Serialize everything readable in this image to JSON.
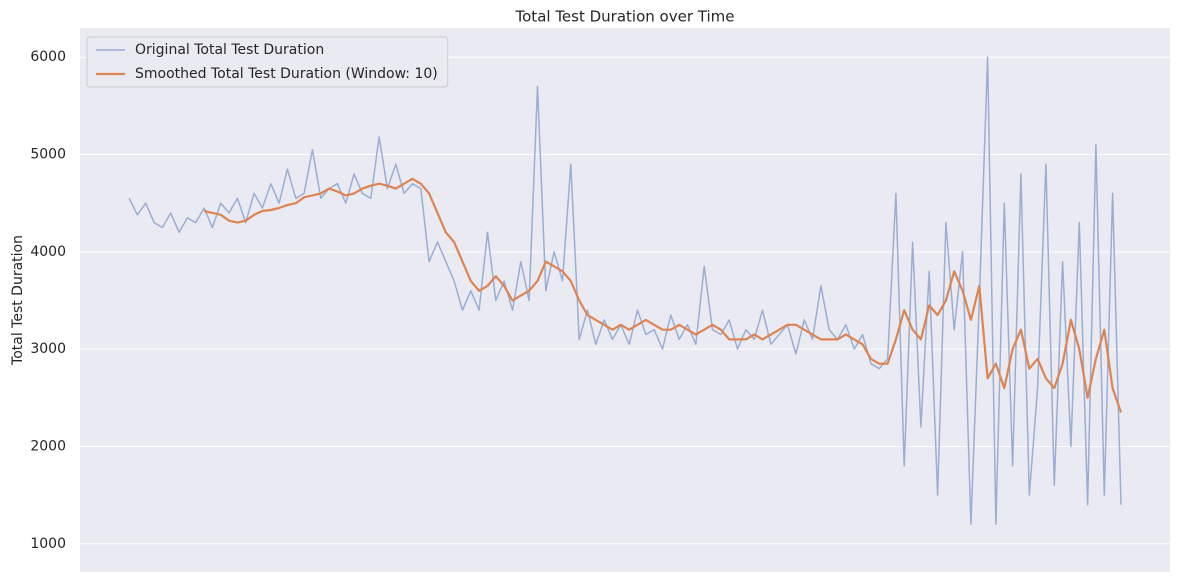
{
  "chart_data": {
    "type": "line",
    "title": "Total Test Duration over Time",
    "y_label": "Total Test Duration",
    "ylim": [
      710,
      6300
    ],
    "yticks": [
      1000,
      2000,
      3000,
      4000,
      5000,
      6000
    ],
    "grid": true,
    "legend": "upper-left",
    "series": [
      {
        "name": "Original Total Test Duration",
        "color": "#9aaed3",
        "width": 1.5,
        "values": [
          4550,
          4380,
          4500,
          4300,
          4250,
          4400,
          4200,
          4350,
          4300,
          4450,
          4250,
          4500,
          4400,
          4550,
          4300,
          4600,
          4450,
          4700,
          4500,
          4850,
          4550,
          4600,
          5050,
          4550,
          4650,
          4700,
          4500,
          4800,
          4600,
          4550,
          5180,
          4650,
          4900,
          4600,
          4700,
          4650,
          3900,
          4100,
          3900,
          3700,
          3400,
          3600,
          3400,
          4200,
          3500,
          3700,
          3400,
          3900,
          3500,
          5700,
          3600,
          4000,
          3700,
          4900,
          3100,
          3400,
          3050,
          3300,
          3100,
          3250,
          3050,
          3400,
          3150,
          3200,
          3000,
          3350,
          3100,
          3250,
          3050,
          3850,
          3200,
          3150,
          3300,
          3000,
          3200,
          3100,
          3400,
          3050,
          3150,
          3250,
          2950,
          3300,
          3100,
          3650,
          3200,
          3100,
          3250,
          3000,
          3150,
          2850,
          2800,
          2900,
          4600,
          1800,
          4100,
          2200,
          3800,
          1500,
          4300,
          3200,
          4000,
          1200,
          3500,
          6000,
          1200,
          4500,
          1800,
          4800,
          1500,
          2600,
          4900,
          1600,
          3900,
          2000,
          4300,
          1400,
          5100,
          1500,
          4600,
          1400
        ]
      },
      {
        "name": "Smoothed Total Test Duration (Window: 10)",
        "color": "#dd8452",
        "width": 2.2,
        "values": [
          null,
          null,
          null,
          null,
          null,
          null,
          null,
          null,
          null,
          4420,
          4400,
          4380,
          4320,
          4300,
          4320,
          4380,
          4420,
          4430,
          4450,
          4480,
          4500,
          4560,
          4580,
          4600,
          4650,
          4620,
          4580,
          4600,
          4650,
          4680,
          4700,
          4680,
          4650,
          4700,
          4750,
          4700,
          4600,
          4400,
          4200,
          4100,
          3900,
          3700,
          3600,
          3650,
          3750,
          3650,
          3500,
          3550,
          3600,
          3700,
          3900,
          3850,
          3800,
          3700,
          3500,
          3350,
          3300,
          3250,
          3200,
          3250,
          3200,
          3250,
          3300,
          3250,
          3200,
          3200,
          3250,
          3200,
          3150,
          3200,
          3250,
          3200,
          3100,
          3100,
          3100,
          3150,
          3100,
          3150,
          3200,
          3250,
          3250,
          3200,
          3150,
          3100,
          3100,
          3100,
          3150,
          3100,
          3050,
          2900,
          2850,
          2850,
          3100,
          3400,
          3200,
          3100,
          3450,
          3350,
          3500,
          3800,
          3600,
          3300,
          3650,
          2700,
          2850,
          2600,
          3000,
          3200,
          2800,
          2900,
          2700,
          2600,
          2850,
          3300,
          3000,
          2500,
          2900,
          3200,
          2600,
          2350
        ]
      }
    ]
  }
}
